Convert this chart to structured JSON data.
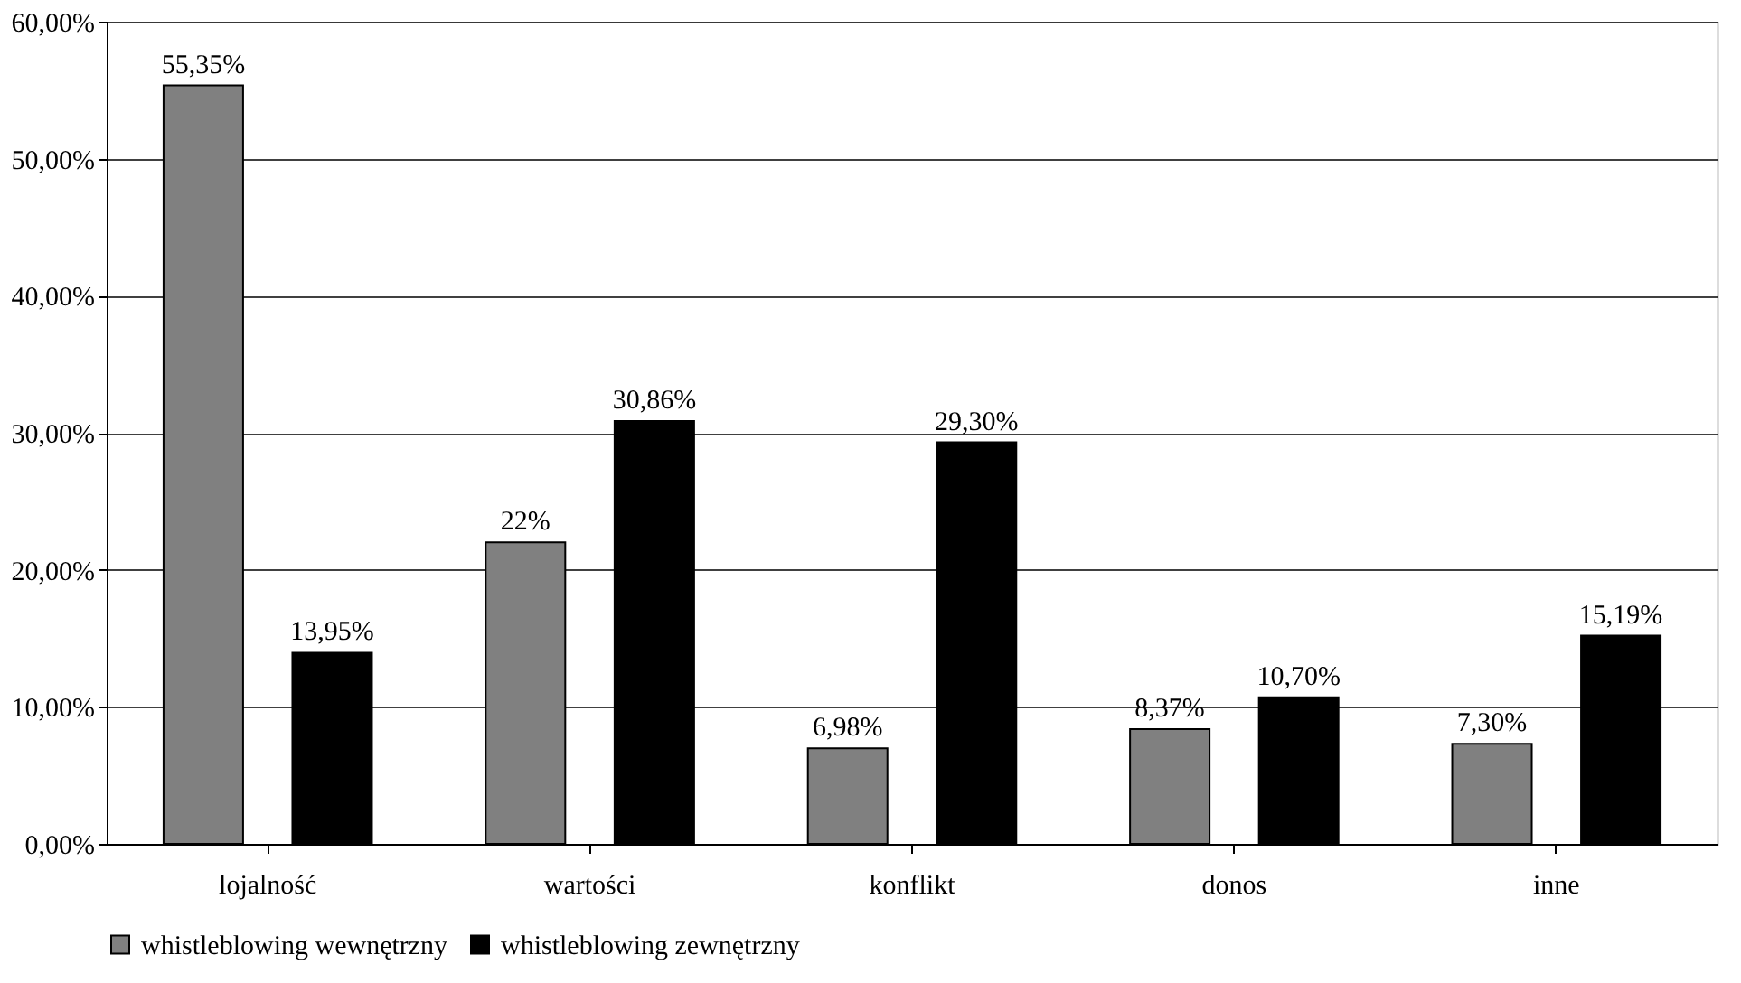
{
  "chart_data": {
    "type": "bar",
    "categories": [
      "lojalność",
      "wartości",
      "konflikt",
      "donos",
      "inne"
    ],
    "series": [
      {
        "name": "whistleblowing wewnętrzny",
        "color": "#808080",
        "values": [
          55.35,
          22,
          6.98,
          8.37,
          7.3
        ],
        "value_labels": [
          "55,35%",
          "22%",
          "6,98%",
          "8,37%",
          "7,30%"
        ]
      },
      {
        "name": "whistleblowing zewnętrzny",
        "color": "#000000",
        "values": [
          13.95,
          30.86,
          29.3,
          10.7,
          15.19
        ],
        "value_labels": [
          "13,95%",
          "30,86%",
          "29,30%",
          "10,70%",
          "15,19%"
        ]
      }
    ],
    "ylim": [
      0,
      60
    ],
    "yticks": [
      {
        "value": 0,
        "label": "0,00%"
      },
      {
        "value": 10,
        "label": "10,00%"
      },
      {
        "value": 20,
        "label": "20,00%"
      },
      {
        "value": 30,
        "label": "30,00%"
      },
      {
        "value": 40,
        "label": "40,00%"
      },
      {
        "value": 50,
        "label": "50,00%"
      },
      {
        "value": 60,
        "label": "60,00%"
      }
    ],
    "grid": "y",
    "legend": "bottom"
  }
}
